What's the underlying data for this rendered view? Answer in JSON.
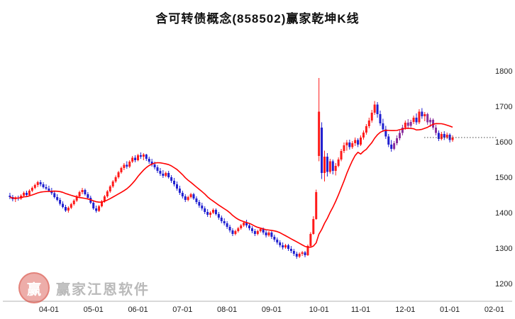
{
  "header": {
    "title": "含可转债概念(858502)赢家乾坤K线"
  },
  "watermark": {
    "brand": "赢家江恩软件",
    "logo_char": "赢"
  },
  "chart_data": {
    "type": "candlestick",
    "title": "含可转债概念(858502)赢家乾坤K线",
    "ylabel": "",
    "xlabel": "",
    "ylim": [
      1150,
      1850
    ],
    "y_ticks": [
      1200,
      1300,
      1400,
      1500,
      1600,
      1700,
      1800
    ],
    "x_ticks": [
      "04-01",
      "05-01",
      "06-01",
      "07-01",
      "08-01",
      "09-01",
      "10-01",
      "11-01",
      "12-01",
      "01-01",
      "02-01"
    ],
    "grid": false,
    "legend_position": "none",
    "colors": {
      "up": "#ff1a1a",
      "down": "#1f1fd0",
      "alt": "#8a2d9c"
    },
    "overlay": {
      "type": "sma",
      "period": 15,
      "color": "#ff0000"
    },
    "last_price_line": {
      "value": 1612,
      "style": "dotted",
      "color": "#444444"
    },
    "candles": [
      [
        "03-12",
        1448,
        1456,
        1438,
        1444
      ],
      [
        "03-13",
        1444,
        1450,
        1432,
        1438
      ],
      [
        "03-14",
        1438,
        1446,
        1430,
        1442
      ],
      [
        "03-15",
        1442,
        1448,
        1434,
        1440
      ],
      [
        "03-18",
        1440,
        1452,
        1436,
        1448
      ],
      [
        "03-19",
        1448,
        1460,
        1444,
        1456
      ],
      [
        "03-20",
        1456,
        1462,
        1446,
        1450
      ],
      [
        "03-21",
        1450,
        1466,
        1448,
        1462
      ],
      [
        "03-22",
        1462,
        1474,
        1458,
        1470
      ],
      [
        "03-25",
        1470,
        1482,
        1466,
        1478
      ],
      [
        "03-26",
        1478,
        1490,
        1472,
        1486
      ],
      [
        "03-27",
        1486,
        1492,
        1474,
        1480
      ],
      [
        "03-28",
        1480,
        1486,
        1468,
        1472
      ],
      [
        "03-29",
        1472,
        1480,
        1464,
        1468
      ],
      [
        "04-01",
        1468,
        1476,
        1458,
        1462
      ],
      [
        "04-02",
        1462,
        1470,
        1450,
        1455
      ],
      [
        "04-03",
        1455,
        1460,
        1440,
        1444
      ],
      [
        "04-08",
        1444,
        1452,
        1432,
        1436
      ],
      [
        "04-09",
        1436,
        1442,
        1420,
        1425
      ],
      [
        "04-10",
        1425,
        1432,
        1412,
        1416
      ],
      [
        "04-11",
        1416,
        1422,
        1402,
        1406
      ],
      [
        "04-12",
        1406,
        1418,
        1400,
        1414
      ],
      [
        "04-15",
        1414,
        1428,
        1410,
        1424
      ],
      [
        "04-16",
        1424,
        1438,
        1420,
        1434
      ],
      [
        "04-17",
        1434,
        1450,
        1430,
        1446
      ],
      [
        "04-18",
        1446,
        1462,
        1442,
        1458
      ],
      [
        "04-19",
        1458,
        1470,
        1452,
        1464
      ],
      [
        "04-22",
        1464,
        1468,
        1448,
        1452
      ],
      [
        "04-23",
        1452,
        1458,
        1438,
        1442
      ],
      [
        "04-26",
        1442,
        1448,
        1424,
        1428
      ],
      [
        "05-06",
        1428,
        1432,
        1408,
        1412
      ],
      [
        "05-07",
        1412,
        1420,
        1400,
        1405
      ],
      [
        "05-08",
        1405,
        1422,
        1402,
        1418
      ],
      [
        "05-09",
        1418,
        1436,
        1415,
        1432
      ],
      [
        "05-10",
        1432,
        1450,
        1428,
        1446
      ],
      [
        "05-13",
        1446,
        1464,
        1442,
        1460
      ],
      [
        "05-14",
        1460,
        1478,
        1456,
        1474
      ],
      [
        "05-15",
        1474,
        1492,
        1470,
        1488
      ],
      [
        "05-16",
        1488,
        1505,
        1484,
        1500
      ],
      [
        "05-17",
        1500,
        1518,
        1496,
        1514
      ],
      [
        "05-20",
        1514,
        1530,
        1510,
        1526
      ],
      [
        "05-21",
        1526,
        1540,
        1520,
        1535
      ],
      [
        "05-22",
        1535,
        1545,
        1524,
        1530
      ],
      [
        "05-24",
        1530,
        1548,
        1526,
        1544
      ],
      [
        "05-27",
        1544,
        1560,
        1540,
        1555
      ],
      [
        "05-29",
        1555,
        1562,
        1542,
        1548
      ],
      [
        "06-03",
        1548,
        1566,
        1545,
        1562
      ],
      [
        "06-04",
        1562,
        1570,
        1552,
        1558
      ],
      [
        "06-05",
        1558,
        1568,
        1548,
        1564
      ],
      [
        "06-06",
        1564,
        1566,
        1546,
        1552
      ],
      [
        "06-07",
        1552,
        1558,
        1538,
        1544
      ],
      [
        "06-11",
        1544,
        1552,
        1530,
        1536
      ],
      [
        "06-12",
        1536,
        1544,
        1522,
        1528
      ],
      [
        "06-13",
        1528,
        1534,
        1512,
        1518
      ],
      [
        "06-14",
        1518,
        1526,
        1504,
        1510
      ],
      [
        "06-17",
        1510,
        1520,
        1498,
        1504
      ],
      [
        "06-18",
        1504,
        1516,
        1500,
        1512
      ],
      [
        "06-19",
        1512,
        1518,
        1496,
        1500
      ],
      [
        "06-20",
        1500,
        1506,
        1484,
        1490
      ],
      [
        "06-24",
        1490,
        1498,
        1474,
        1480
      ],
      [
        "06-26",
        1480,
        1488,
        1462,
        1468
      ],
      [
        "06-28",
        1468,
        1476,
        1450,
        1456
      ],
      [
        "07-01",
        1456,
        1462,
        1440,
        1446
      ],
      [
        "07-02",
        1446,
        1452,
        1430,
        1436
      ],
      [
        "07-03",
        1436,
        1448,
        1432,
        1444
      ],
      [
        "07-05",
        1444,
        1456,
        1440,
        1452
      ],
      [
        "07-08",
        1452,
        1456,
        1436,
        1440
      ],
      [
        "07-09",
        1440,
        1446,
        1424,
        1430
      ],
      [
        "07-10",
        1430,
        1436,
        1414,
        1420
      ],
      [
        "07-12",
        1420,
        1428,
        1406,
        1412
      ],
      [
        "07-15",
        1412,
        1418,
        1396,
        1402
      ],
      [
        "07-16",
        1402,
        1410,
        1388,
        1394
      ],
      [
        "07-17",
        1394,
        1404,
        1386,
        1400
      ],
      [
        "07-19",
        1400,
        1412,
        1396,
        1408
      ],
      [
        "07-22",
        1408,
        1412,
        1392,
        1396
      ],
      [
        "07-24",
        1396,
        1402,
        1380,
        1386
      ],
      [
        "07-26",
        1386,
        1392,
        1370,
        1376
      ],
      [
        "07-30",
        1376,
        1384,
        1364,
        1370
      ],
      [
        "08-01",
        1370,
        1376,
        1354,
        1360
      ],
      [
        "08-02",
        1360,
        1366,
        1344,
        1350
      ],
      [
        "08-05",
        1350,
        1356,
        1334,
        1340
      ],
      [
        "08-06",
        1340,
        1352,
        1336,
        1348
      ],
      [
        "08-07",
        1348,
        1360,
        1344,
        1356
      ],
      [
        "08-08",
        1356,
        1368,
        1352,
        1364
      ],
      [
        "08-09",
        1364,
        1376,
        1360,
        1372
      ],
      [
        "08-12",
        1372,
        1380,
        1358,
        1364
      ],
      [
        "08-13",
        1364,
        1370,
        1350,
        1356
      ],
      [
        "08-15",
        1356,
        1362,
        1342,
        1348
      ],
      [
        "08-16",
        1348,
        1354,
        1334,
        1340
      ],
      [
        "08-19",
        1340,
        1352,
        1336,
        1348
      ],
      [
        "08-21",
        1348,
        1358,
        1344,
        1354
      ],
      [
        "08-23",
        1354,
        1358,
        1338,
        1344
      ],
      [
        "08-27",
        1344,
        1350,
        1330,
        1336
      ],
      [
        "08-30",
        1336,
        1348,
        1332,
        1344
      ],
      [
        "09-02",
        1344,
        1348,
        1326,
        1332
      ],
      [
        "09-03",
        1332,
        1338,
        1318,
        1324
      ],
      [
        "09-05",
        1324,
        1330,
        1310,
        1316
      ],
      [
        "09-06",
        1316,
        1322,
        1302,
        1308
      ],
      [
        "09-09",
        1308,
        1316,
        1296,
        1302
      ],
      [
        "09-10",
        1302,
        1312,
        1298,
        1308
      ],
      [
        "09-11",
        1308,
        1312,
        1292,
        1298
      ],
      [
        "09-13",
        1298,
        1306,
        1286,
        1292
      ],
      [
        "09-16",
        1292,
        1298,
        1278,
        1284
      ],
      [
        "09-18",
        1284,
        1290,
        1270,
        1276
      ],
      [
        "09-19",
        1276,
        1288,
        1272,
        1284
      ],
      [
        "09-20",
        1284,
        1292,
        1278,
        1288
      ],
      [
        "09-23",
        1288,
        1292,
        1274,
        1280
      ],
      [
        "09-24",
        1280,
        1310,
        1278,
        1306
      ],
      [
        "09-26",
        1306,
        1345,
        1302,
        1340
      ],
      [
        "09-27",
        1340,
        1390,
        1338,
        1382
      ],
      [
        "09-30",
        1382,
        1465,
        1380,
        1458
      ],
      [
        "10-08",
        1560,
        1780,
        1545,
        1685
      ],
      [
        "10-09",
        1640,
        1655,
        1495,
        1512
      ],
      [
        "10-10",
        1512,
        1575,
        1488,
        1558
      ],
      [
        "10-11",
        1558,
        1568,
        1502,
        1515
      ],
      [
        "10-14",
        1515,
        1552,
        1510,
        1545
      ],
      [
        "10-15",
        1545,
        1550,
        1508,
        1518
      ],
      [
        "10-16",
        1518,
        1540,
        1505,
        1532
      ],
      [
        "10-17",
        1532,
        1556,
        1528,
        1550
      ],
      [
        "10-18",
        1550,
        1580,
        1545,
        1574
      ],
      [
        "10-21",
        1574,
        1598,
        1568,
        1590
      ],
      [
        "10-22",
        1590,
        1605,
        1575,
        1598
      ],
      [
        "10-24",
        1598,
        1606,
        1578,
        1585
      ],
      [
        "10-25",
        1585,
        1602,
        1580,
        1596
      ],
      [
        "10-29",
        1596,
        1612,
        1588,
        1605
      ],
      [
        "10-31",
        1605,
        1610,
        1585,
        1592
      ],
      [
        "11-01",
        1592,
        1618,
        1588,
        1612
      ],
      [
        "11-04",
        1612,
        1632,
        1606,
        1626
      ],
      [
        "11-05",
        1626,
        1650,
        1620,
        1644
      ],
      [
        "11-06",
        1644,
        1668,
        1638,
        1660
      ],
      [
        "11-07",
        1660,
        1690,
        1654,
        1682
      ],
      [
        "11-08",
        1682,
        1715,
        1676,
        1705
      ],
      [
        "11-11",
        1705,
        1712,
        1668,
        1678
      ],
      [
        "11-12",
        1678,
        1688,
        1645,
        1652
      ],
      [
        "11-13",
        1652,
        1665,
        1628,
        1635
      ],
      [
        "11-14",
        1635,
        1645,
        1608,
        1615
      ],
      [
        "11-15",
        1615,
        1622,
        1585,
        1592
      ],
      [
        "11-18",
        1592,
        1605,
        1572,
        1580
      ],
      [
        "11-19",
        1580,
        1602,
        1576,
        1596,
        "p"
      ],
      [
        "11-21",
        1596,
        1618,
        1590,
        1610,
        "p"
      ],
      [
        "11-25",
        1610,
        1632,
        1604,
        1625,
        "p"
      ],
      [
        "11-28",
        1625,
        1648,
        1618,
        1640,
        "p"
      ],
      [
        "12-02",
        1640,
        1660,
        1634,
        1654
      ],
      [
        "12-03",
        1654,
        1664,
        1638,
        1645,
        "p"
      ],
      [
        "12-04",
        1645,
        1662,
        1640,
        1656,
        "p"
      ],
      [
        "12-06",
        1656,
        1674,
        1650,
        1668
      ],
      [
        "12-09",
        1668,
        1680,
        1648,
        1655
      ],
      [
        "12-10",
        1655,
        1692,
        1650,
        1685
      ],
      [
        "12-11",
        1685,
        1695,
        1665,
        1672
      ],
      [
        "12-12",
        1672,
        1684,
        1658,
        1678
      ],
      [
        "12-13",
        1678,
        1682,
        1648,
        1655,
        "p"
      ],
      [
        "12-16",
        1655,
        1668,
        1642,
        1662,
        "p"
      ],
      [
        "12-17",
        1662,
        1666,
        1634,
        1640,
        "p"
      ],
      [
        "12-18",
        1640,
        1648,
        1618,
        1625,
        "p"
      ],
      [
        "12-20",
        1625,
        1632,
        1602,
        1608
      ],
      [
        "12-23",
        1608,
        1628,
        1604,
        1622
      ],
      [
        "12-26",
        1622,
        1630,
        1605,
        1612
      ],
      [
        "12-30",
        1612,
        1626,
        1608,
        1620
      ],
      [
        "01-02",
        1620,
        1624,
        1598,
        1605
      ],
      [
        "01-03",
        1605,
        1618,
        1600,
        1612
      ]
    ]
  }
}
